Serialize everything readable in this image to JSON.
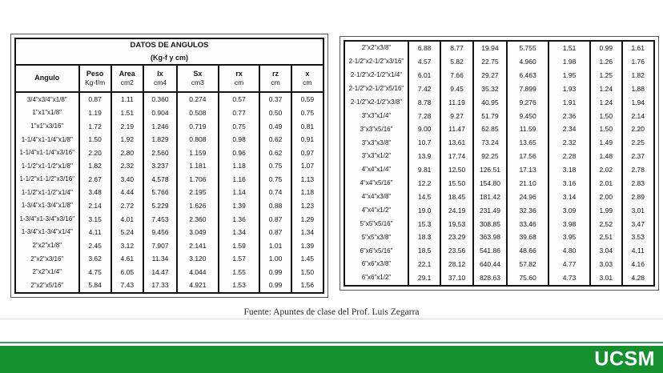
{
  "slide": {
    "source_label": "Fuente: Apuntes de clase del Prof. Luis Zegarra"
  },
  "tables": {
    "title": "DATOS DE ANGULOS",
    "subtitle": "(Kg-f y cm)",
    "columns": [
      {
        "label": "Angulo",
        "unit": ""
      },
      {
        "label": "Peso",
        "unit": "Kg-f/m"
      },
      {
        "label": "Area",
        "unit": "cm2"
      },
      {
        "label": "Ix",
        "unit": "cm4"
      },
      {
        "label": "Sx",
        "unit": "cm3"
      },
      {
        "label": "rx",
        "unit": "cm"
      },
      {
        "label": "rz",
        "unit": "cm"
      },
      {
        "label": "x",
        "unit": "cm"
      }
    ],
    "left_rows": [
      [
        "3/4\"x3/4\"x1/8\"",
        "0.87",
        "1.11",
        "0.360",
        "0.274",
        "0.57",
        "0.37",
        "0.59"
      ],
      [
        "1\"x1\"x1/8\"",
        "1.19",
        "1.51",
        "0.904",
        "0.508",
        "0.77",
        "0.50",
        "0.75"
      ],
      [
        "1\"x1\"x3/16\"",
        "1.72",
        "2.19",
        "1.246",
        "0.719",
        "0.75",
        "0.49",
        "0.81"
      ],
      [
        "1-1/4\"x1-1/4\"x1/8\"",
        "1.50",
        "1.92",
        "1.829",
        "0.808",
        "0.98",
        "0.62",
        "0.91"
      ],
      [
        "1-1/4\"x1-1/4\"x3/16\"",
        "2.20",
        "2.80",
        "2.560",
        "1.159",
        "0.96",
        "0.62",
        "0.97"
      ],
      [
        "1-1/2\"x1-1/2\"x1/8\"",
        "1.82",
        "2.32",
        "3.237",
        "1.181",
        "1.18",
        "0.75",
        "1.07"
      ],
      [
        "1-1/2\"x1-1/2\"x3/16\"",
        "2.67",
        "3.40",
        "4.578",
        "1.706",
        "1.16",
        "0.75",
        "1.13"
      ],
      [
        "1-1/2\"x1-1/2\"x1/4\"",
        "3.48",
        "4.44",
        "5.766",
        "2.195",
        "1.14",
        "0.74",
        "1.18"
      ],
      [
        "1-3/4\"x1-3/4\"x1/8\"",
        "2.14",
        "2.72",
        "5.229",
        "1.626",
        "1.39",
        "0.88",
        "1.23"
      ],
      [
        "1-3/4\"x1-3/4\"x3/16\"",
        "3.15",
        "4.01",
        "7.453",
        "2.360",
        "1.36",
        "0.87",
        "1.29"
      ],
      [
        "1-3/4\"x1-3/4\"x1/4\"",
        "4.11",
        "5.24",
        "9.456",
        "3.049",
        "1.34",
        "0.87",
        "1.34"
      ],
      [
        "2\"x2\"x1/8\"",
        "2.45",
        "3.12",
        "7.907",
        "2.141",
        "1.59",
        "1.01",
        "1.39"
      ],
      [
        "2\"x2\"x3/16\"",
        "3.62",
        "4.61",
        "11.34",
        "3.120",
        "1.57",
        "1.00",
        "1.45"
      ],
      [
        "2\"x2\"x1/4\"",
        "4.75",
        "6.05",
        "14.47",
        "4.044",
        "1.55",
        "0.99",
        "1.50"
      ],
      [
        "2\"x2\"x5/16\"",
        "5.84",
        "7.43",
        "17.33",
        "4.921",
        "1.53",
        "0.99",
        "1.56"
      ]
    ],
    "right_rows": [
      [
        "2\"x2\"x3/8\"",
        "6.88",
        "8.77",
        "19.94",
        "5.755",
        "1.51",
        "0.99",
        "1.61"
      ],
      [
        "2-1/2\"x2-1/2\"x3/16\"",
        "4.57",
        "5.82",
        "22.75",
        "4.960",
        "1.98",
        "1.26",
        "1.76"
      ],
      [
        "2-1/2\"x2-1/2\"x1/4\"",
        "6.01",
        "7.66",
        "29.27",
        "6.463",
        "1.95",
        "1.25",
        "1.82"
      ],
      [
        "2-1/2\"x2-1/2\"x5/16\"",
        "7.42",
        "9.45",
        "35.32",
        "7.899",
        "1.93",
        "1.24",
        "1.88"
      ],
      [
        "2-1/2\"x2-1/2\"x3/8\"",
        "8.78",
        "11.19",
        "40.95",
        "9.276",
        "1.91",
        "1.24",
        "1.94"
      ],
      [
        "3\"x3\"x1/4\"",
        "7.28",
        "9.27",
        "51.79",
        "9.450",
        "2.36",
        "1.50",
        "2.14"
      ],
      [
        "3\"x3\"x5/16\"",
        "9.00",
        "11.47",
        "62.85",
        "11.59",
        "2.34",
        "1.50",
        "2.20"
      ],
      [
        "3\"x3\"x3/8\"",
        "10.7",
        "13.61",
        "73.24",
        "13.65",
        "2.32",
        "1.49",
        "2.25"
      ],
      [
        "3\"x3\"x1/2\"",
        "13.9",
        "17.74",
        "92.25",
        "17.56",
        "2.28",
        "1.48",
        "2.37"
      ],
      [
        "4\"x4\"x1/4\"",
        "9.81",
        "12.50",
        "126.51",
        "17.13",
        "3.18",
        "2.02",
        "2.78"
      ],
      [
        "4\"x4\"x5/16\"",
        "12.2",
        "15.50",
        "154.80",
        "21.10",
        "3.16",
        "2.01",
        "2.83"
      ],
      [
        "4\"x4\"x3/8\"",
        "14.5",
        "18.45",
        "181.42",
        "24.96",
        "3.14",
        "2.00",
        "2.89"
      ],
      [
        "4\"x4\"x1/2\"",
        "19.0",
        "24.19",
        "231.49",
        "32.36",
        "3.09",
        "1.99",
        "3.01"
      ],
      [
        "5\"x5\"x5/16\"",
        "15.3",
        "19.53",
        "308.85",
        "33.46",
        "3.98",
        "2.52",
        "3.47"
      ],
      [
        "5\"x5\"x3/8\"",
        "18.3",
        "23.29",
        "363.98",
        "39.68",
        "3.95",
        "2.51",
        "3.53"
      ],
      [
        "6\"x6\"x5/16\"",
        "18.5",
        "23.56",
        "541.86",
        "48.66",
        "4.80",
        "3.04",
        "4.11"
      ],
      [
        "6\"x6\"x3/8\"",
        "22.1",
        "28.12",
        "640.44",
        "57.82",
        "4.77",
        "3.03",
        "4.16"
      ],
      [
        "6\"x6\"x1/2\"",
        "29.1",
        "37.10",
        "828.63",
        "75.60",
        "4.73",
        "3.01",
        "4.28"
      ]
    ]
  },
  "footer_bar": {
    "logo_text": "UCSM",
    "band_color": "#14902e",
    "stripe_color": "#3a9f58",
    "logo_color": "#ffffff"
  }
}
